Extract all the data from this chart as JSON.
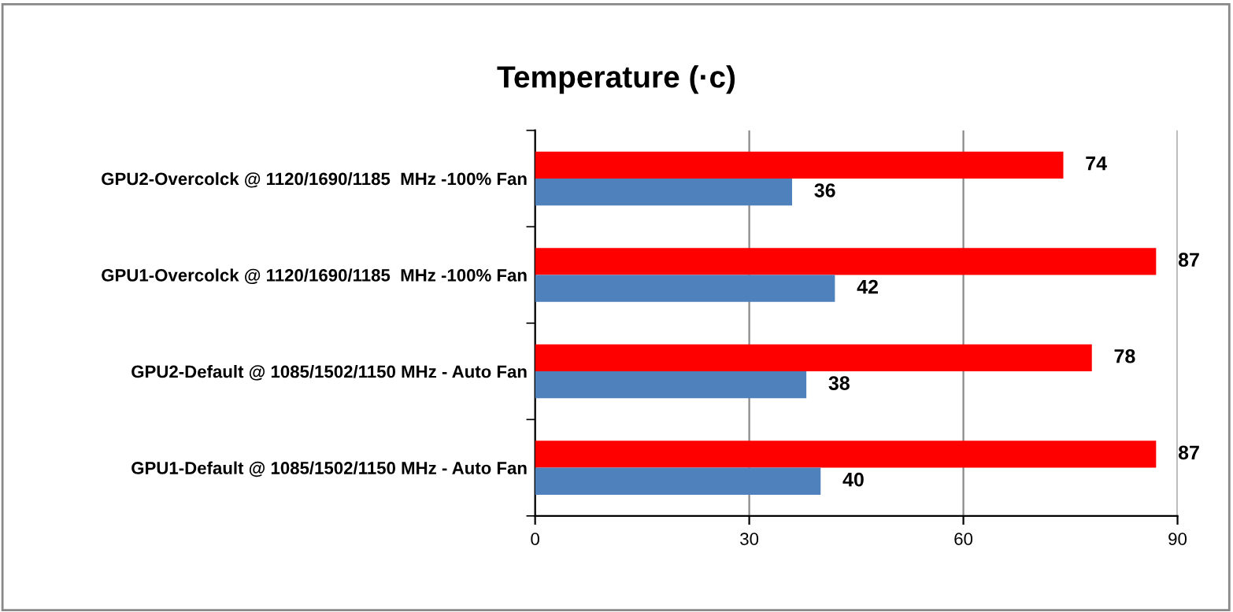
{
  "chart_data": {
    "type": "bar",
    "orientation": "horizontal",
    "title": "Temperature (·c)",
    "categories": [
      "GPU2-Overcolck @ 1120/1690/1185  MHz -100% Fan",
      "GPU1-Overcolck @ 1120/1690/1185  MHz -100% Fan",
      "GPU2-Default @ 1085/1502/1150 MHz - Auto Fan",
      "GPU1-Default @ 1085/1502/1150 MHz - Auto Fan"
    ],
    "series": [
      {
        "color": "#ff0000",
        "values": [
          74,
          87,
          78,
          87
        ]
      },
      {
        "color": "#4f81bd",
        "values": [
          36,
          42,
          38,
          40
        ]
      }
    ],
    "xlim": [
      0,
      90
    ],
    "xticks": [
      0,
      30,
      60,
      90
    ],
    "grid": "x",
    "data_labels": true
  }
}
